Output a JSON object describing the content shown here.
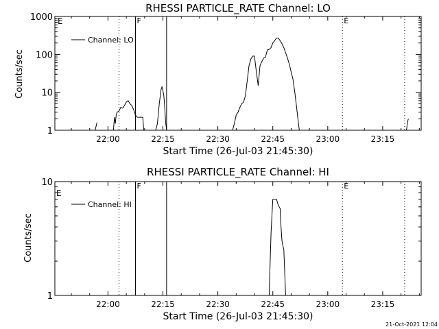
{
  "footer": {
    "timestamp": "21-Oct-2021 12:04"
  },
  "chart_data": [
    {
      "type": "line",
      "title": "RHESSI PARTICLE_RATE Channel: LO",
      "xlabel": "Start Time (26-Jul-03 21:45:30)",
      "ylabel": "Counts/sec",
      "yscale": "log",
      "ylim": [
        1,
        1000
      ],
      "xlim": [
        "21:45:30",
        "23:25:30"
      ],
      "y_tick_labels": [
        "1",
        "10",
        "100",
        "1000"
      ],
      "y_tick_values": [
        1,
        10,
        100,
        1000
      ],
      "x_tick_labels": [
        "22:00",
        "22:15",
        "22:30",
        "22:45",
        "23:00",
        "23:15"
      ],
      "legend": {
        "label": "Channel: LO",
        "position": "top-left"
      },
      "grid": false,
      "markers": [
        {
          "time": "22:03:00",
          "style": "dotted",
          "label": ""
        },
        {
          "time": "22:07:30",
          "style": "solid",
          "label": "F"
        },
        {
          "time": "22:16:00",
          "style": "solid",
          "label": ""
        },
        {
          "time": "23:04:00",
          "style": "dotted",
          "label": "E"
        },
        {
          "time": "23:21:00",
          "style": "dotted",
          "label": ""
        }
      ],
      "corner_label": "E",
      "series": [
        {
          "segments": [
            [
              [
                "21:56:30",
                1
              ],
              [
                "21:57:00",
                1.6
              ]
            ],
            [
              [
                "22:01:30",
                1
              ],
              [
                "22:01:45",
                2.2
              ],
              [
                "22:02:00",
                1.5
              ],
              [
                "22:02:15",
                2.5
              ],
              [
                "22:02:30",
                3.0
              ],
              [
                "22:03:00",
                3.2
              ],
              [
                "22:03:30",
                4.0
              ],
              [
                "22:04:00",
                3.8
              ],
              [
                "22:04:30",
                4.5
              ],
              [
                "22:05:00",
                5.5
              ],
              [
                "22:05:30",
                6.0
              ],
              [
                "22:06:00",
                5.0
              ],
              [
                "22:06:30",
                4.5
              ],
              [
                "22:07:00",
                3.5
              ],
              [
                "22:07:30",
                2.5
              ],
              [
                "22:08:00",
                2.2
              ],
              [
                "22:09:30",
                2.2
              ],
              [
                "22:09:45",
                1
              ]
            ],
            [
              [
                "22:13:00",
                1
              ],
              [
                "22:13:30",
                1.5
              ],
              [
                "22:14:00",
                5.0
              ],
              [
                "22:14:30",
                12
              ],
              [
                "22:14:45",
                14
              ],
              [
                "22:15:00",
                11
              ],
              [
                "22:15:15",
                8
              ],
              [
                "22:15:30",
                4
              ],
              [
                "22:15:45",
                1.6
              ],
              [
                "22:16:00",
                1
              ]
            ],
            [
              [
                "22:34:00",
                1
              ],
              [
                "22:34:30",
                1.5
              ],
              [
                "22:35:00",
                2.5
              ],
              [
                "22:35:30",
                3.0
              ],
              [
                "22:36:00",
                4.0
              ],
              [
                "22:36:30",
                5.0
              ],
              [
                "22:37:00",
                5.5
              ],
              [
                "22:37:30",
                8
              ],
              [
                "22:38:00",
                20
              ],
              [
                "22:38:30",
                50
              ],
              [
                "22:39:00",
                75
              ],
              [
                "22:39:30",
                90
              ],
              [
                "22:40:00",
                90
              ],
              [
                "22:40:30",
                35
              ],
              [
                "22:41:00",
                15
              ],
              [
                "22:41:30",
                50
              ],
              [
                "22:42:00",
                65
              ],
              [
                "22:42:30",
                80
              ],
              [
                "22:43:00",
                85
              ],
              [
                "22:43:30",
                130
              ],
              [
                "22:44:00",
                135
              ],
              [
                "22:44:30",
                150
              ],
              [
                "22:45:00",
                200
              ],
              [
                "22:45:30",
                230
              ],
              [
                "22:46:00",
                270
              ],
              [
                "22:46:30",
                270
              ],
              [
                "22:47:00",
                230
              ],
              [
                "22:47:30",
                190
              ],
              [
                "22:48:00",
                150
              ],
              [
                "22:48:30",
                110
              ],
              [
                "22:49:00",
                80
              ],
              [
                "22:49:30",
                55
              ],
              [
                "22:50:00",
                35
              ],
              [
                "22:50:30",
                22
              ],
              [
                "22:51:00",
                10
              ],
              [
                "22:51:30",
                4
              ],
              [
                "22:52:00",
                1.5
              ],
              [
                "22:52:15",
                1
              ]
            ],
            [
              [
                "23:21:30",
                1
              ],
              [
                "23:21:45",
                1.6
              ],
              [
                "23:22:00",
                2.0
              ]
            ]
          ]
        }
      ]
    },
    {
      "type": "line",
      "title": "RHESSI PARTICLE_RATE Channel: HI",
      "xlabel": "Start Time (26-Jul-03 21:45:30)",
      "ylabel": "Counts/sec",
      "yscale": "log",
      "ylim": [
        1,
        10
      ],
      "xlim": [
        "21:45:30",
        "23:25:30"
      ],
      "y_tick_labels": [
        "1",
        "10"
      ],
      "y_tick_values": [
        1,
        10
      ],
      "x_tick_labels": [
        "22:00",
        "22:15",
        "22:30",
        "22:45",
        "23:00",
        "23:15"
      ],
      "legend": {
        "label": "Channel: HI",
        "position": "top-left"
      },
      "grid": false,
      "markers": [
        {
          "time": "22:03:00",
          "style": "dotted",
          "label": ""
        },
        {
          "time": "22:07:30",
          "style": "solid",
          "label": "F"
        },
        {
          "time": "22:16:00",
          "style": "solid",
          "label": ""
        },
        {
          "time": "23:04:00",
          "style": "dotted",
          "label": "E"
        },
        {
          "time": "23:21:00",
          "style": "dotted",
          "label": ""
        }
      ],
      "corner_label": "E",
      "series": [
        {
          "segments": [
            [
              [
                "22:44:00",
                1
              ],
              [
                "22:44:30",
                3.5
              ],
              [
                "22:45:00",
                7.0
              ],
              [
                "22:46:00",
                7.0
              ],
              [
                "22:46:30",
                6.2
              ],
              [
                "22:47:00",
                5.8
              ],
              [
                "22:47:15",
                4.0
              ],
              [
                "22:47:30",
                3.0
              ],
              [
                "22:48:00",
                2.5
              ],
              [
                "22:48:30",
                1
              ]
            ]
          ]
        }
      ]
    }
  ]
}
